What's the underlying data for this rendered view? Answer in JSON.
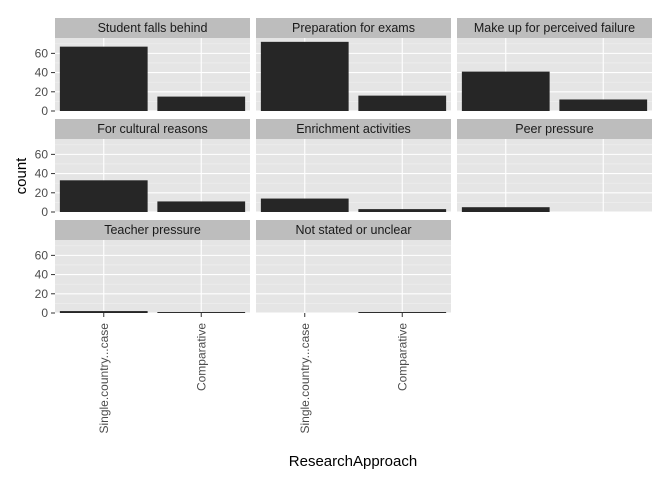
{
  "chart_data": {
    "type": "bar",
    "facet_type": "faceted bar (count)",
    "xlabel": "ResearchApproach",
    "ylabel": "count",
    "categories": [
      "Single.country...case",
      "Comparative"
    ],
    "y_ticks": [
      0,
      20,
      40,
      60
    ],
    "ylim": [
      0,
      76
    ],
    "grid": true,
    "colors": {
      "bar": "#262626",
      "panel": "#e5e5e5",
      "strip": "#bdbdbd",
      "grid_major": "#ffffff",
      "grid_minor": "#f0f0f0"
    },
    "facets": [
      {
        "title": "Student falls behind",
        "values": [
          67,
          15
        ]
      },
      {
        "title": "Preparation for exams",
        "values": [
          72,
          16
        ]
      },
      {
        "title": "Make up for perceived failure",
        "values": [
          41,
          12
        ]
      },
      {
        "title": "For cultural reasons",
        "values": [
          33,
          11
        ]
      },
      {
        "title": "Enrichment activities",
        "values": [
          14,
          3
        ]
      },
      {
        "title": "Peer pressure",
        "values": [
          5,
          null
        ]
      },
      {
        "title": "Teacher pressure",
        "values": [
          2,
          1
        ]
      },
      {
        "title": "Not stated or unclear",
        "values": [
          null,
          1
        ]
      }
    ]
  }
}
